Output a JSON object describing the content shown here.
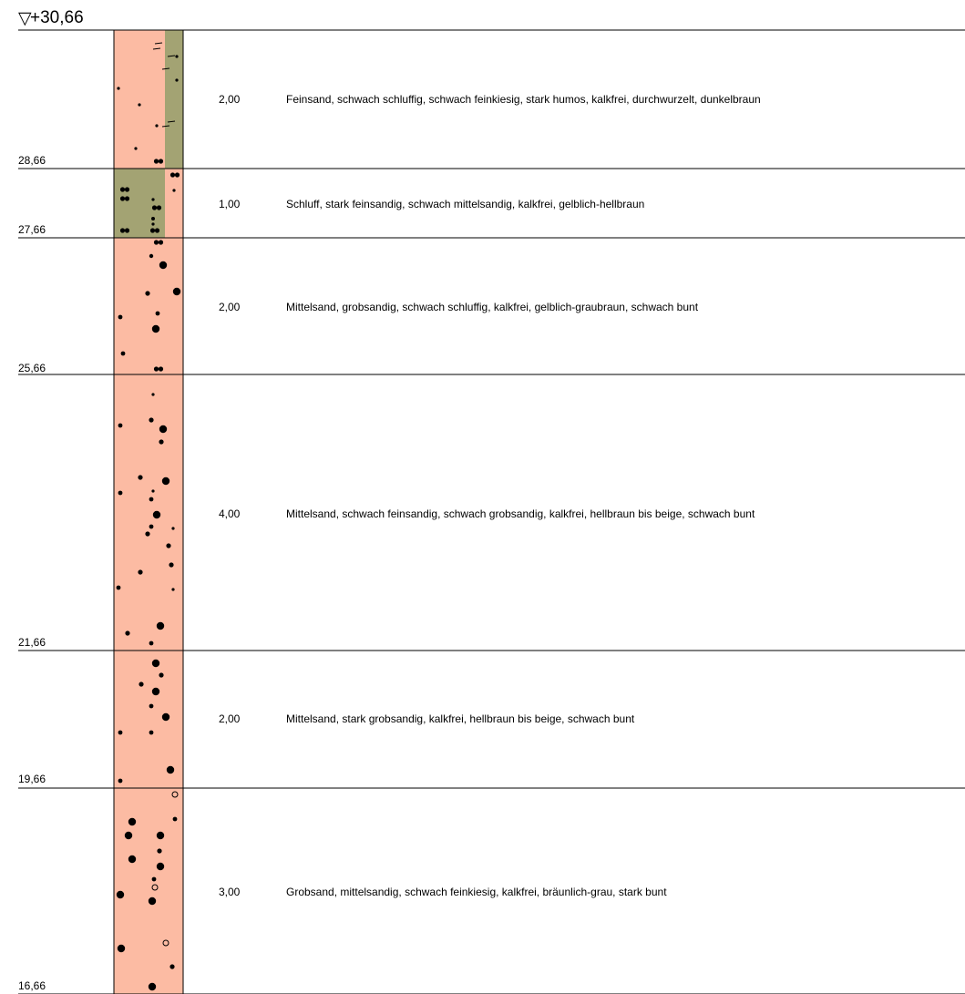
{
  "top": {
    "marker": "▽",
    "elevation": "+30,66"
  },
  "colors": {
    "sand": "#fcbba3",
    "silt": "#a3a373",
    "line": "#000000"
  },
  "layers": [
    {
      "bottom_elevation": "28,66",
      "thickness": "2,00",
      "description": "Feinsand, schwach schluffig, schwach feinkiesig, stark humos, kalkfrei, durchwurzelt, dunkelbraun",
      "fill": "sand",
      "overlay": "silt-strip-right"
    },
    {
      "bottom_elevation": "27,66",
      "thickness": "1,00",
      "description": "Schluff, stark feinsandig, schwach mittelsandig, kalkfrei, gelblich-hellbraun",
      "fill": "silt",
      "overlay": "sand-strip-right"
    },
    {
      "bottom_elevation": "25,66",
      "thickness": "2,00",
      "description": "Mittelsand, grobsandig, schwach schluffig, kalkfrei, gelblich-graubraun, schwach bunt",
      "fill": "sand"
    },
    {
      "bottom_elevation": "21,66",
      "thickness": "4,00",
      "description": "Mittelsand, schwach feinsandig, schwach grobsandig, kalkfrei, hellbraun bis beige, schwach bunt",
      "fill": "sand"
    },
    {
      "bottom_elevation": "19,66",
      "thickness": "2,00",
      "description": "Mittelsand, stark grobsandig, kalkfrei, hellbraun bis beige, schwach bunt",
      "fill": "sand"
    },
    {
      "bottom_elevation": "16,66",
      "thickness": "3,00",
      "description": "Grobsand, mittelsandig, schwach feinkiesig, kalkfrei, bräunlich-grau, stark bunt",
      "fill": "sand"
    }
  ]
}
